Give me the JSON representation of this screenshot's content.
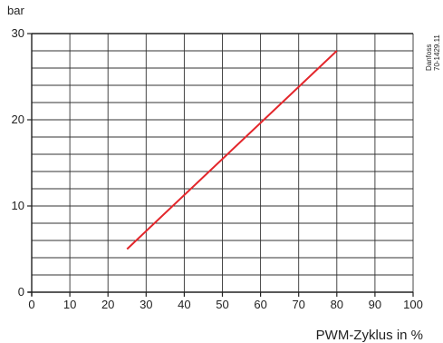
{
  "chart_data": {
    "type": "line",
    "title": "",
    "xlabel": "PWM-Zyklus in %",
    "ylabel": "bar",
    "xlim": [
      0,
      100
    ],
    "ylim": [
      0,
      30
    ],
    "x_ticks": [
      0,
      10,
      20,
      30,
      40,
      50,
      60,
      70,
      80,
      90,
      100
    ],
    "y_ticks": [
      0,
      10,
      20,
      30
    ],
    "grid": true,
    "y_minor_step": 2,
    "series": [
      {
        "color": "#e3262b",
        "x": [
          25,
          80
        ],
        "y": [
          5,
          28
        ]
      }
    ]
  },
  "side_note": {
    "line1": "Danfoss",
    "line2": "70-1429.11"
  }
}
